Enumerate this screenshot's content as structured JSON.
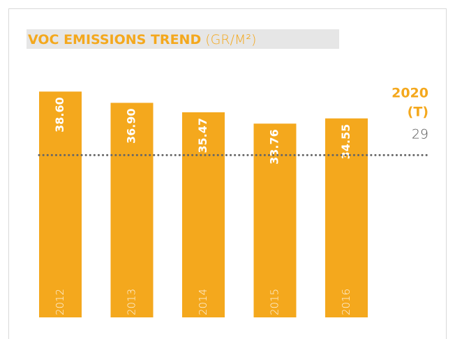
{
  "chart_data": {
    "type": "bar",
    "title": "VOC EMISSIONS TREND",
    "unit": "(GR/M²)",
    "categories": [
      "2012",
      "2013",
      "2014",
      "2015",
      "2016"
    ],
    "values": [
      38.6,
      36.9,
      35.47,
      33.76,
      34.55
    ],
    "value_labels": [
      "38.60",
      "36.90",
      "35.47",
      "33.76",
      "34.55"
    ],
    "color": "#f4a81d",
    "ylim": [
      4.5,
      40
    ],
    "target": {
      "label_lines": [
        "2020",
        "(T)"
      ],
      "value": 29
    }
  }
}
